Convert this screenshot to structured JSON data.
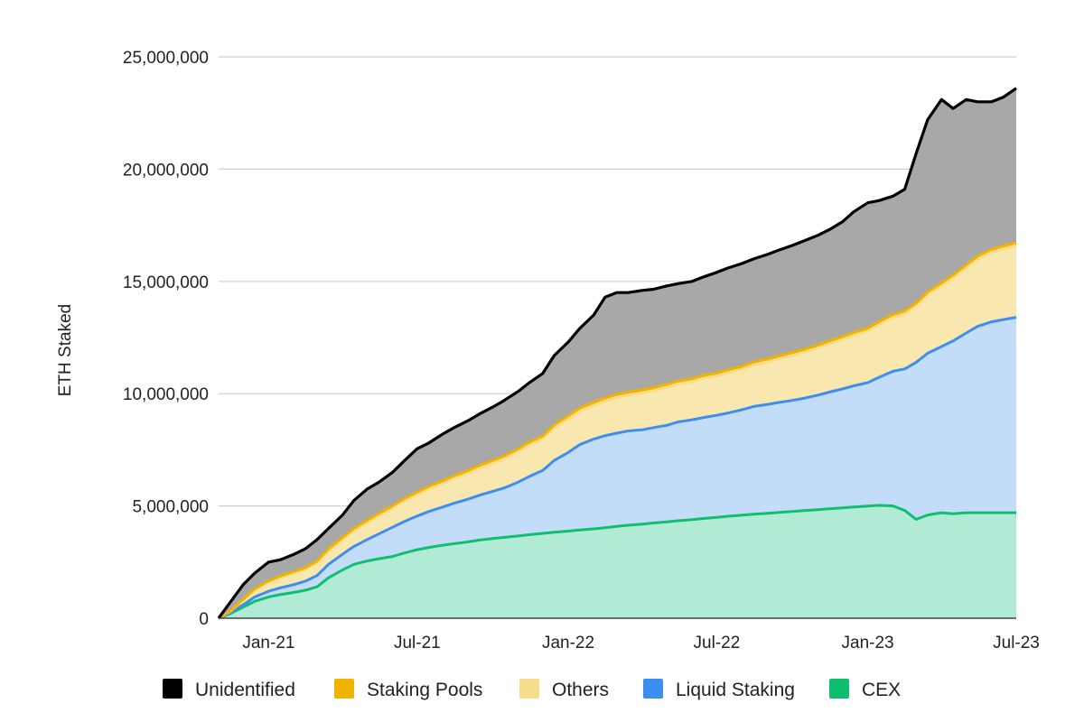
{
  "chart_data": {
    "type": "area",
    "stacked": true,
    "ylabel": "ETH Staked",
    "xlabel": "",
    "ylim": [
      0,
      25000000
    ],
    "y_ticks": [
      0,
      5000000,
      10000000,
      15000000,
      20000000,
      25000000
    ],
    "y_tick_labels": [
      "0",
      "5,000,000",
      "10,000,000",
      "15,000,000",
      "20,000,000",
      "25,000,000"
    ],
    "x_ticks": [
      "Jan-21",
      "Jul-21",
      "Jan-22",
      "Jul-22",
      "Jan-23",
      "Jul-23"
    ],
    "x": [
      "2020-11-01",
      "2020-11-15",
      "2020-12-01",
      "2020-12-15",
      "2021-01-01",
      "2021-01-15",
      "2021-02-01",
      "2021-02-15",
      "2021-03-01",
      "2021-03-15",
      "2021-04-01",
      "2021-04-15",
      "2021-05-01",
      "2021-05-15",
      "2021-06-01",
      "2021-06-15",
      "2021-07-01",
      "2021-07-15",
      "2021-08-01",
      "2021-08-15",
      "2021-09-01",
      "2021-09-15",
      "2021-10-01",
      "2021-10-15",
      "2021-11-01",
      "2021-11-15",
      "2021-12-01",
      "2021-12-15",
      "2022-01-01",
      "2022-01-15",
      "2022-02-01",
      "2022-02-15",
      "2022-03-01",
      "2022-03-15",
      "2022-04-01",
      "2022-04-15",
      "2022-05-01",
      "2022-05-15",
      "2022-06-01",
      "2022-06-15",
      "2022-07-01",
      "2022-07-15",
      "2022-08-01",
      "2022-08-15",
      "2022-09-01",
      "2022-09-15",
      "2022-10-01",
      "2022-10-15",
      "2022-11-01",
      "2022-11-15",
      "2022-12-01",
      "2022-12-15",
      "2023-01-01",
      "2023-01-15",
      "2023-02-01",
      "2023-02-15",
      "2023-03-01",
      "2023-03-15",
      "2023-04-01",
      "2023-04-15",
      "2023-05-01",
      "2023-05-15",
      "2023-06-01",
      "2023-06-15",
      "2023-07-01"
    ],
    "series": [
      {
        "name": "CEX",
        "color": "#0fbf6f",
        "fill": "#b2ebd5",
        "values": [
          0,
          200000,
          500000,
          750000,
          950000,
          1050000,
          1150000,
          1250000,
          1400000,
          1800000,
          2150000,
          2400000,
          2550000,
          2650000,
          2750000,
          2900000,
          3050000,
          3150000,
          3250000,
          3320000,
          3400000,
          3480000,
          3550000,
          3600000,
          3660000,
          3720000,
          3780000,
          3830000,
          3880000,
          3930000,
          3980000,
          4030000,
          4090000,
          4140000,
          4190000,
          4240000,
          4290000,
          4340000,
          4390000,
          4440000,
          4490000,
          4540000,
          4590000,
          4630000,
          4670000,
          4710000,
          4750000,
          4790000,
          4830000,
          4870000,
          4910000,
          4950000,
          4990000,
          5030000,
          5000000,
          4800000,
          4400000,
          4600000,
          4700000,
          4650000,
          4700000,
          4700000,
          4700000,
          4700000,
          4700000
        ]
      },
      {
        "name": "Liquid Staking",
        "color": "#3d8ef0",
        "fill": "#c3ddf8",
        "values": [
          0,
          50000,
          100000,
          200000,
          250000,
          300000,
          350000,
          400000,
          500000,
          600000,
          700000,
          800000,
          950000,
          1100000,
          1300000,
          1400000,
          1500000,
          1600000,
          1700000,
          1800000,
          1900000,
          2000000,
          2100000,
          2200000,
          2400000,
          2600000,
          2800000,
          3200000,
          3500000,
          3800000,
          4000000,
          4100000,
          4150000,
          4200000,
          4200000,
          4250000,
          4300000,
          4400000,
          4450000,
          4500000,
          4550000,
          4600000,
          4700000,
          4800000,
          4850000,
          4900000,
          4950000,
          5000000,
          5100000,
          5200000,
          5300000,
          5400000,
          5500000,
          5700000,
          6000000,
          6300000,
          7000000,
          7200000,
          7400000,
          7700000,
          8000000,
          8300000,
          8500000,
          8600000,
          8700000
        ]
      },
      {
        "name": "Others",
        "color": "#f7dc8a",
        "fill": "#f9e7b0",
        "values": [
          0,
          50000,
          200000,
          300000,
          400000,
          450000,
          500000,
          520000,
          550000,
          600000,
          650000,
          700000,
          750000,
          800000,
          850000,
          900000,
          950000,
          1000000,
          1050000,
          1100000,
          1150000,
          1200000,
          1250000,
          1300000,
          1350000,
          1400000,
          1400000,
          1450000,
          1500000,
          1500000,
          1500000,
          1550000,
          1600000,
          1600000,
          1650000,
          1650000,
          1700000,
          1700000,
          1700000,
          1750000,
          1750000,
          1800000,
          1800000,
          1850000,
          1900000,
          1950000,
          2000000,
          2050000,
          2100000,
          2150000,
          2200000,
          2250000,
          2300000,
          2350000,
          2400000,
          2450000,
          2500000,
          2600000,
          2700000,
          2800000,
          2900000,
          3000000,
          3100000,
          3150000,
          3200000
        ]
      },
      {
        "name": "Staking Pools",
        "color": "#f0b400",
        "fill": "#f0b400",
        "values": [
          0,
          20000,
          50000,
          60000,
          70000,
          80000,
          80000,
          90000,
          90000,
          100000,
          100000,
          100000,
          110000,
          110000,
          110000,
          120000,
          120000,
          120000,
          120000,
          120000,
          130000,
          130000,
          130000,
          130000,
          130000,
          130000,
          130000,
          130000,
          130000,
          130000,
          130000,
          130000,
          130000,
          130000,
          130000,
          130000,
          130000,
          130000,
          130000,
          130000,
          130000,
          130000,
          130000,
          130000,
          130000,
          130000,
          130000,
          130000,
          130000,
          130000,
          130000,
          130000,
          130000,
          130000,
          130000,
          130000,
          130000,
          130000,
          130000,
          130000,
          130000,
          130000,
          130000,
          130000,
          130000
        ]
      },
      {
        "name": "Unidentified",
        "color": "#000000",
        "fill": "#a8a8a8",
        "values": [
          0,
          380000,
          650000,
          700000,
          830000,
          720000,
          770000,
          840000,
          960000,
          900000,
          1000000,
          1250000,
          1390000,
          1390000,
          1490000,
          1680000,
          1930000,
          1930000,
          2080000,
          2150000,
          2220000,
          2290000,
          2370000,
          2470000,
          2560000,
          2650000,
          2790000,
          3090000,
          3290000,
          3540000,
          3890000,
          4490000,
          4530000,
          4430000,
          4430000,
          4380000,
          4380000,
          4330000,
          4330000,
          4380000,
          4480000,
          4530000,
          4580000,
          4590000,
          4650000,
          4710000,
          4770000,
          4830000,
          4890000,
          4950000,
          5110000,
          5370000,
          5580000,
          5390000,
          5270000,
          5420000,
          6670000,
          7670000,
          8170000,
          7420000,
          7370000,
          6870000,
          6570000,
          6620000,
          6870000
        ]
      }
    ]
  },
  "legend": {
    "items": [
      {
        "label": "Unidentified",
        "color": "#000000"
      },
      {
        "label": "Staking Pools",
        "color": "#f0b400"
      },
      {
        "label": "Others",
        "color": "#f7dc8a"
      },
      {
        "label": "Liquid Staking",
        "color": "#3d8ef0"
      },
      {
        "label": "CEX",
        "color": "#0fbf6f"
      }
    ]
  }
}
